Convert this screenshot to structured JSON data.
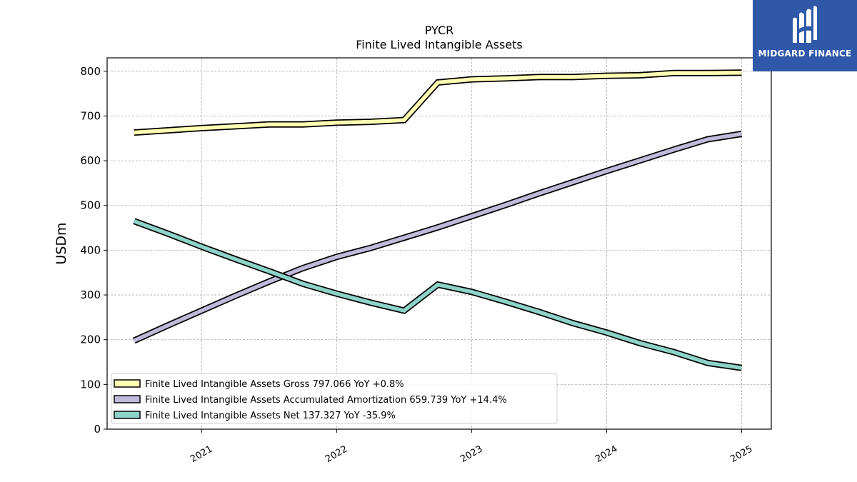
{
  "chart_data": {
    "type": "line",
    "title": "PYCR",
    "subtitle": "Finite Lived Intangible Assets",
    "ylabel": "USDm",
    "xlabel": "",
    "ylim": [
      0,
      830
    ],
    "xlim": [
      2020.3,
      2025.22
    ],
    "yticks": [
      0,
      100,
      200,
      300,
      400,
      500,
      600,
      700,
      800
    ],
    "xticks": [
      {
        "value": 2021.0,
        "label": "2021"
      },
      {
        "value": 2022.0,
        "label": "2022"
      },
      {
        "value": 2023.0,
        "label": "2023"
      },
      {
        "value": 2024.0,
        "label": "2024"
      },
      {
        "value": 2025.0,
        "label": "2025"
      }
    ],
    "grid": true,
    "legend_position": "lower-left",
    "x": [
      2020.5,
      2020.75,
      2021.0,
      2021.25,
      2021.5,
      2021.75,
      2022.0,
      2022.25,
      2022.5,
      2022.75,
      2023.0,
      2023.25,
      2023.5,
      2023.75,
      2024.0,
      2024.25,
      2024.5,
      2024.75,
      2025.0
    ],
    "series": [
      {
        "name": "Finite Lived Intangible Assets Gross",
        "legend": "Finite Lived Intangible Assets Gross  797.066 YoY +0.8%",
        "color": "#ffffb3",
        "values": [
          663,
          668,
          673,
          677,
          681,
          681,
          685,
          687,
          691,
          775,
          782,
          784,
          787,
          787,
          790,
          791,
          796,
          796,
          797
        ]
      },
      {
        "name": "Finite Lived Intangible Assets Accumulated Amortization",
        "legend": "Finite Lived Intangible Assets Accumulated Amortization  659.739 YoY +14.4%",
        "color": "#bebada",
        "values": [
          198,
          232,
          265,
          298,
          330,
          360,
          385,
          405,
          428,
          451,
          476,
          501,
          527,
          552,
          577,
          601,
          625,
          648,
          660
        ]
      },
      {
        "name": "Finite Lived Intangible Assets Net",
        "legend": "Finite Lived Intangible Assets Net  137.327 YoY -35.9%",
        "color": "#8dd3c7",
        "values": [
          465,
          437,
          408,
          380,
          353,
          325,
          303,
          283,
          265,
          323,
          307,
          285,
          262,
          237,
          216,
          192,
          172,
          148,
          137
        ]
      }
    ]
  },
  "logo": {
    "text": "MIDGARD FINANCE",
    "color": "#2f59a8"
  }
}
